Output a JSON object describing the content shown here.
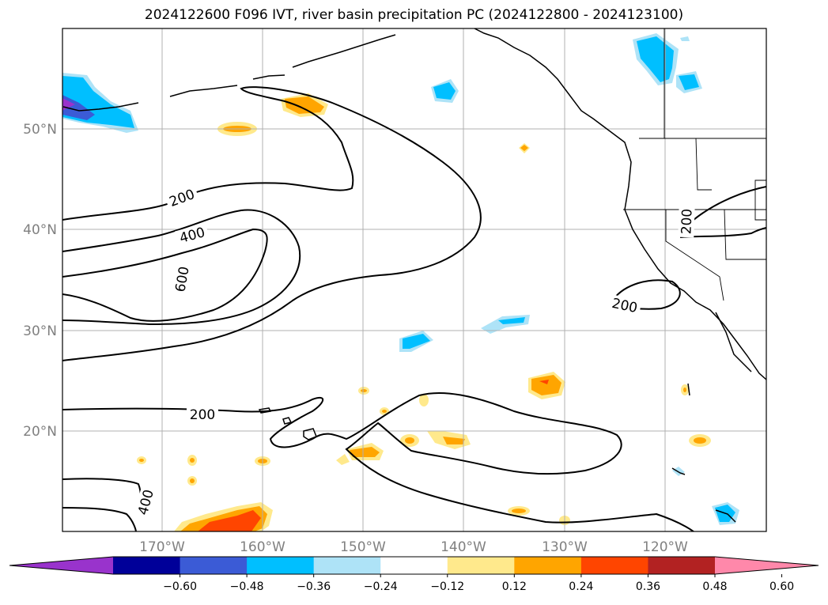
{
  "title": "2024122600 F096 IVT, river basin precipitation PC (2024122800 - 2024123100)",
  "map": {
    "lon_ticks": [
      "170°W",
      "160°W",
      "150°W",
      "140°W",
      "130°W",
      "120°W"
    ],
    "lat_ticks": [
      "50°N",
      "40°N",
      "30°N",
      "20°N"
    ],
    "gridlines": true
  },
  "ivt_contours": {
    "levels": [
      200,
      400,
      600
    ],
    "labels": [
      "200",
      "400",
      "600",
      "200",
      "400",
      "200",
      "200"
    ]
  },
  "colorbar": {
    "orientation": "horizontal",
    "extend": "both",
    "tick_labels": [
      "−0.60",
      "−0.48",
      "−0.36",
      "−0.24",
      "−0.12",
      "0.12",
      "0.24",
      "0.36",
      "0.48",
      "0.60"
    ],
    "colors": [
      "#9933cc",
      "#000099",
      "#3b5bd6",
      "#00bfff",
      "#aee3f7",
      "#ffffff",
      "#ffe98c",
      "#ffa500",
      "#ff4500",
      "#b22222",
      "#ff88aa"
    ]
  }
}
